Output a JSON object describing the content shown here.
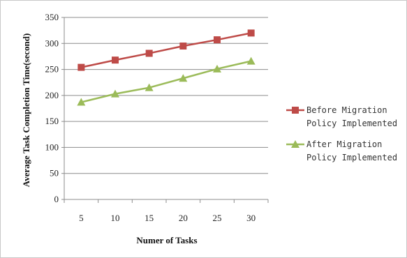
{
  "chart_data": {
    "type": "line",
    "title": "",
    "xlabel": "Numer of Tasks",
    "ylabel": "Average Task Completion Time(second)",
    "categories": [
      "5",
      "10",
      "15",
      "20",
      "25",
      "30"
    ],
    "ylim": [
      0,
      350
    ],
    "yticks": [
      "0",
      "50",
      "100",
      "150",
      "200",
      "250",
      "300",
      "350"
    ],
    "grid": true,
    "legend_position": "right",
    "series": [
      {
        "name_lines": [
          "Before Migration",
          "Policy Implemented"
        ],
        "values": [
          254,
          268,
          281,
          295,
          307,
          320
        ],
        "color": "#be4b48",
        "marker": "square"
      },
      {
        "name_lines": [
          "After Migration",
          "Policy Implemented"
        ],
        "values": [
          187,
          203,
          215,
          233,
          251,
          266
        ],
        "color": "#9bbb59",
        "marker": "triangle"
      }
    ]
  }
}
